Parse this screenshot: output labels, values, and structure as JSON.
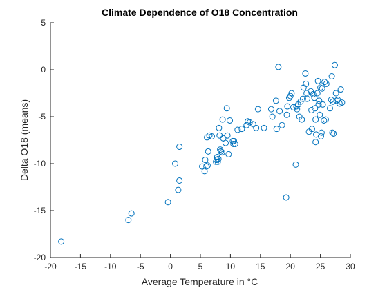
{
  "chart_data": {
    "type": "scatter",
    "title": "Climate Dependence of O18 Concentration",
    "xlabel": "Average Temperature in °C",
    "ylabel": "Delta O18 (means)",
    "xlim": [
      -20,
      30
    ],
    "ylim": [
      -20,
      5
    ],
    "xticks": [
      -20,
      -15,
      -10,
      -5,
      0,
      5,
      10,
      15,
      20,
      25,
      30
    ],
    "yticks": [
      -20,
      -15,
      -10,
      -5,
      0,
      5
    ],
    "xtick_labels": [
      "-20",
      "-15",
      "-10",
      "-5",
      "0",
      "5",
      "10",
      "15",
      "20",
      "25",
      "30"
    ],
    "ytick_labels": [
      "-20",
      "-15",
      "-10",
      "-5",
      "0",
      "5"
    ],
    "grid": false,
    "legend": "none",
    "marker": "open-circle",
    "series": [
      {
        "color": "#0072BD",
        "x": [
          -18.2,
          -7.0,
          -6.5,
          -0.4,
          0.8,
          1.3,
          1.5,
          1.5,
          5.3,
          5.7,
          5.8,
          6.0,
          6.1,
          6.2,
          6.3,
          6.5,
          6.9,
          7.6,
          7.7,
          7.8,
          7.9,
          8.0,
          8.1,
          8.2,
          8.3,
          8.4,
          8.6,
          8.7,
          8.8,
          9.2,
          9.4,
          9.5,
          9.7,
          9.9,
          10.4,
          10.5,
          10.6,
          10.8,
          11.2,
          11.9,
          12.7,
          12.9,
          13.2,
          13.8,
          14.3,
          14.6,
          15.6,
          16.8,
          17.0,
          17.6,
          17.7,
          18.0,
          18.2,
          18.6,
          19.3,
          19.4,
          19.5,
          19.8,
          20.0,
          20.2,
          20.5,
          20.9,
          21.0,
          21.1,
          21.3,
          21.5,
          21.7,
          21.9,
          22.1,
          22.2,
          22.5,
          22.6,
          22.7,
          22.8,
          23.1,
          23.4,
          23.5,
          23.6,
          23.8,
          24.0,
          24.1,
          24.2,
          24.2,
          24.3,
          24.5,
          24.6,
          24.7,
          24.8,
          24.9,
          25.0,
          25.1,
          25.2,
          25.3,
          25.4,
          25.6,
          25.7,
          25.9,
          26.0,
          26.6,
          26.8,
          26.9,
          27.0,
          27.1,
          27.2,
          27.4,
          27.6,
          27.7,
          27.9,
          28.2,
          28.4,
          28.6
        ],
        "y": [
          -18.3,
          -16.0,
          -15.3,
          -14.1,
          -10.0,
          -12.8,
          -11.8,
          -8.2,
          -10.3,
          -10.8,
          -9.6,
          -10.3,
          -7.2,
          -10.2,
          -8.7,
          -7.0,
          -7.1,
          -9.8,
          -9.6,
          -9.3,
          -9.8,
          -9.5,
          -6.2,
          -7.0,
          -8.5,
          -8.7,
          -8.8,
          -5.3,
          -7.3,
          -7.8,
          -4.1,
          -7.0,
          -9.0,
          -5.4,
          -7.6,
          -7.9,
          -7.6,
          -7.9,
          -6.4,
          -6.3,
          -5.9,
          -5.5,
          -5.6,
          -5.8,
          -6.2,
          -4.2,
          -6.2,
          -4.2,
          -5.0,
          -3.3,
          -6.3,
          0.3,
          -4.4,
          -5.9,
          -13.6,
          -4.8,
          -3.9,
          -3.0,
          -2.8,
          -2.5,
          -4.0,
          -10.1,
          -3.9,
          -4.2,
          -3.7,
          -5.0,
          -3.4,
          -5.3,
          -3.1,
          -1.9,
          -0.4,
          -1.5,
          -2.5,
          -3.1,
          -6.6,
          -2.3,
          -4.3,
          -6.3,
          -2.6,
          -3.0,
          -4.1,
          -7.7,
          -5.3,
          -6.9,
          -2.5,
          -1.2,
          -3.7,
          -3.3,
          -4.8,
          -1.9,
          -7.1,
          -6.7,
          -2.0,
          -3.7,
          -5.4,
          -1.3,
          -5.3,
          -1.5,
          -4.1,
          -3.2,
          -0.7,
          -6.7,
          -3.4,
          -6.8,
          0.5,
          -2.5,
          -3.3,
          -3.2,
          -3.6,
          -2.1,
          -3.5
        ]
      }
    ]
  }
}
